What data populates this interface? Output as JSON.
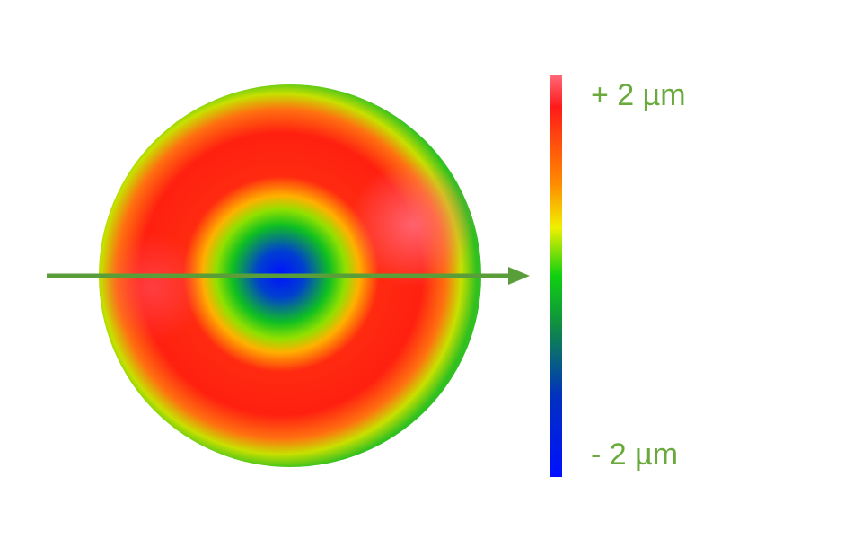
{
  "colorbar": {
    "max_label": "+ 2 µm",
    "min_label": "- 2 µm"
  }
}
